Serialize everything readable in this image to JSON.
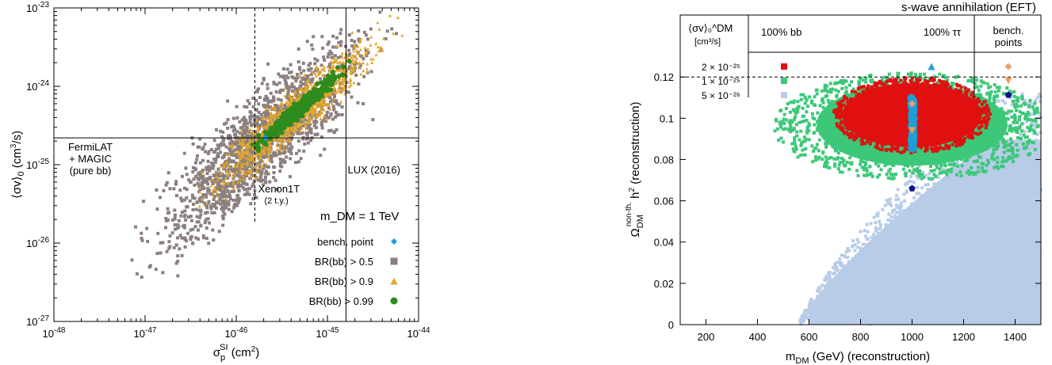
{
  "chart_data": [
    {
      "type": "scatter",
      "xlabel": "σ_p^SI (cm²)",
      "ylabel": "⟨σv⟩₀ (cm³/s)",
      "xscale": "log",
      "yscale": "log",
      "xlim": [
        1e-48,
        1e-44
      ],
      "ylim": [
        1e-27,
        1e-23
      ],
      "grid": false,
      "legend_position": "bottom-right",
      "xticks": [
        {
          "value": 1e-48,
          "mant": "10",
          "exp": "-48"
        },
        {
          "value": 1e-47,
          "mant": "10",
          "exp": "-47"
        },
        {
          "value": 1e-46,
          "mant": "10",
          "exp": "-46"
        },
        {
          "value": 1e-45,
          "mant": "10",
          "exp": "-45"
        },
        {
          "value": 1e-44,
          "mant": "10",
          "exp": "-44"
        }
      ],
      "yticks": [
        {
          "value": 1e-27,
          "mant": "10",
          "exp": "-27"
        },
        {
          "value": 1e-26,
          "mant": "10",
          "exp": "-26"
        },
        {
          "value": 1e-25,
          "mant": "10",
          "exp": "-25"
        },
        {
          "value": 1e-24,
          "mant": "10",
          "exp": "-24"
        },
        {
          "value": 1e-23,
          "mant": "10",
          "exp": "-23"
        }
      ],
      "mass_label": "m_DM = 1 TeV",
      "limits": [
        {
          "kind": "horizontal",
          "value": 2.2e-25,
          "style": "solid",
          "label": [
            "FermiLAT",
            "+ MAGIC",
            "(pure bb)"
          ]
        },
        {
          "kind": "vertical",
          "value": 1.6e-45,
          "style": "solid",
          "label": [
            "LUX (2016)"
          ]
        },
        {
          "kind": "vertical",
          "value": 1.6e-46,
          "style": "dashed",
          "label": [
            "Xenon1T",
            "(2 t.y.)"
          ]
        }
      ],
      "band": {
        "slope": 1,
        "ref_x": 2.1e-46,
        "ref_y": 2.2e-25
      },
      "series": [
        {
          "name": "bench. point",
          "marker": "diamond",
          "color": "#1ea0e0",
          "points": [
            [
              2.1e-46,
              2.2e-25
            ]
          ]
        },
        {
          "name": "BR(bb) > 0.5",
          "marker": "square",
          "color": "#8c7f80",
          "spread": 0.45,
          "xrange": [
            4e-48,
            9e-45
          ]
        },
        {
          "name": "BR(bb) > 0.9",
          "marker": "triangle",
          "color": "#e3a528",
          "spread": 0.22,
          "xrange": [
            2.5e-47,
            8e-45
          ]
        },
        {
          "name": "BR(bb) > 0.99",
          "marker": "circle",
          "color": "#2e8b1e",
          "spread": 0.07,
          "xrange": [
            1.1e-46,
            2.2e-45
          ]
        }
      ]
    },
    {
      "type": "scatter",
      "title": "s-wave annihilation (EFT)",
      "xlabel": "m_DM (GeV)   (reconstruction)",
      "ylabel": "Ω_DM^non-th. h²   (reconstruction)",
      "xlim": [
        100,
        1500
      ],
      "ylim": [
        0,
        0.15
      ],
      "xticks": [
        200,
        400,
        600,
        800,
        1000,
        1200,
        1400
      ],
      "yticks": [
        "0",
        "0.02",
        "0.04",
        "0.06",
        "0.08",
        "0.1",
        "0.12"
      ],
      "grid": false,
      "reference_line": {
        "y": 0.12,
        "style": "dashed"
      },
      "table": {
        "header": [
          "⟨σv⟩₀^DM [cm³/s]",
          "100% bb",
          "100% ττ",
          "bench. points"
        ],
        "rows": [
          {
            "label": "2 × 10⁻²⁵",
            "bb_color": "#e01010",
            "tautau_color": "#1aa0d8",
            "bench_color": "#e8a070",
            "bench_marker": "diamond"
          },
          {
            "label": "1 × 10⁻²⁵",
            "bb_color": "#3cc878",
            "tautau_color": "",
            "bench_color": "#e8a050",
            "bench_marker": "triangle-down"
          },
          {
            "label": "5 × 10⁻²⁶",
            "bb_color": "#b8cce8",
            "tautau_color": "",
            "bench_color": "#101090",
            "bench_marker": "pentagon"
          }
        ]
      },
      "series": [
        {
          "name": "100% bb, 2 × 10⁻²⁵",
          "color": "#e01010",
          "region": {
            "x": [
              700,
              1290
            ],
            "y": [
              0.084,
              0.119
            ]
          }
        },
        {
          "name": "100% bb, 1 × 10⁻²⁵",
          "color": "#3cc878",
          "region": {
            "x": [
              440,
              1500
            ],
            "y": [
              0.05,
              0.122
            ]
          }
        },
        {
          "name": "100% bb, 5 × 10⁻²⁶",
          "color": "#b8cce8",
          "region": {
            "x": [
              560,
              1500
            ],
            "y": [
              0,
              0.112
            ]
          }
        },
        {
          "name": "100% ττ, 2 × 10⁻²⁵",
          "color": "#1aa0d8",
          "region": {
            "x": [
              990,
              1015
            ],
            "y": [
              0.085,
              0.11
            ]
          }
        }
      ],
      "bench_points": [
        {
          "x": 1000,
          "y": 0.107,
          "color": "#e8a070",
          "marker": "diamond"
        },
        {
          "x": 1000,
          "y": 0.094,
          "color": "#e8a050",
          "marker": "triangle-down"
        },
        {
          "x": 1000,
          "y": 0.066,
          "color": "#101090",
          "marker": "pentagon"
        }
      ]
    }
  ]
}
